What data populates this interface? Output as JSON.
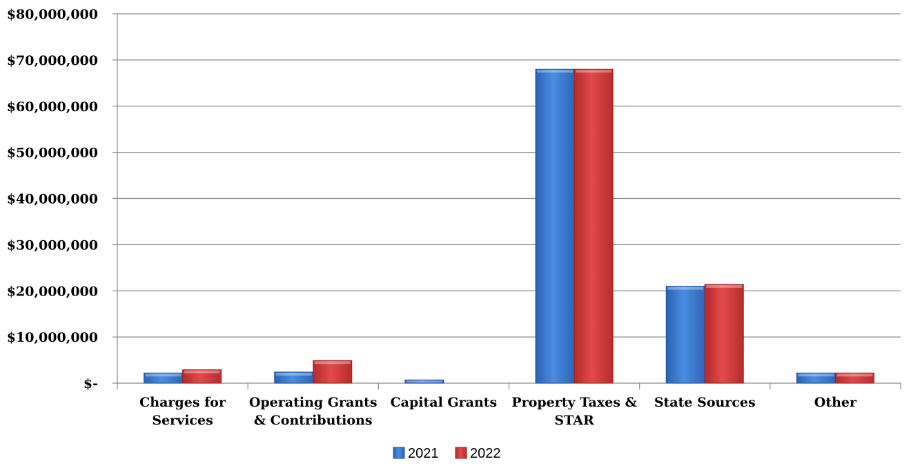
{
  "chart_data": {
    "type": "bar",
    "categories": [
      [
        "Charges for",
        "Services"
      ],
      [
        "Operating Grants",
        "& Contributions"
      ],
      [
        "Capital Grants"
      ],
      [
        "Property Taxes &",
        "STAR"
      ],
      [
        "State Sources"
      ],
      [
        "Other"
      ]
    ],
    "series": [
      {
        "name": "2021",
        "color": "#3d7fd6",
        "values": [
          2200000,
          2400000,
          700000,
          68000000,
          21000000,
          2200000
        ]
      },
      {
        "name": "2022",
        "color": "#d63a3a",
        "values": [
          2900000,
          4900000,
          0,
          68000000,
          21400000,
          2200000
        ]
      }
    ],
    "ylim": [
      0,
      80000000
    ],
    "yticks": [
      0,
      10000000,
      20000000,
      30000000,
      40000000,
      50000000,
      60000000,
      70000000,
      80000000
    ],
    "ytick_labels": [
      "$-",
      "$10,000,000",
      "$20,000,000",
      "$30,000,000",
      "$40,000,000",
      "$50,000,000",
      "$60,000,000",
      "$70,000,000",
      "$80,000,000"
    ],
    "grid": true,
    "legend_position": "bottom"
  }
}
